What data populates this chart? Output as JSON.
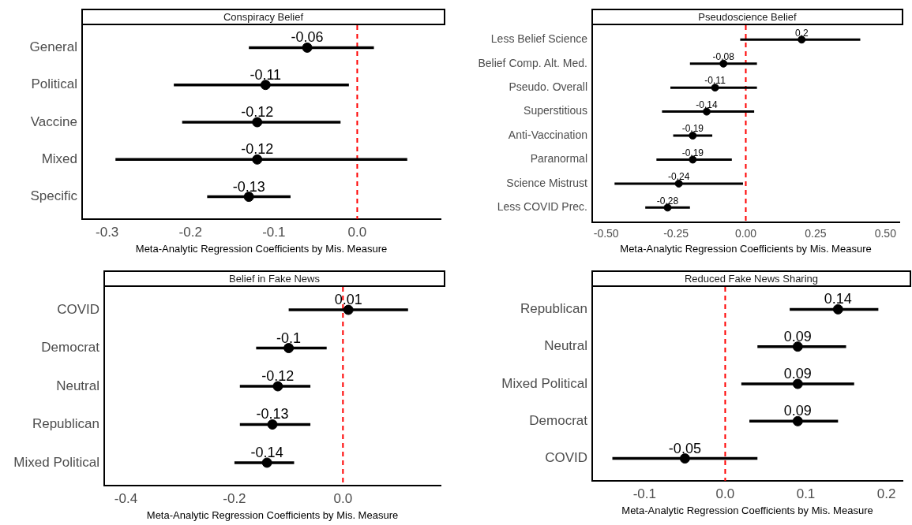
{
  "chart_data": [
    {
      "type": "scatter",
      "orientation": "horizontal",
      "title": "Conspiracy Belief",
      "xlabel": "Meta-Analytic Regression Coefficients by Mis. Measure",
      "categories": [
        "General",
        "Political",
        "Vaccine",
        "Mixed",
        "Specific"
      ],
      "series": [
        {
          "color": "#000000",
          "values": [
            -0.06,
            -0.11,
            -0.12,
            -0.12,
            -0.13
          ],
          "errors": [
            [
              -0.13,
              0.02
            ],
            [
              -0.22,
              -0.01
            ],
            [
              -0.21,
              -0.02
            ],
            [
              -0.29,
              0.06
            ],
            [
              -0.18,
              -0.08
            ]
          ]
        }
      ],
      "xlim": [
        -0.33,
        0.1
      ],
      "xticks": [
        -0.3,
        -0.2,
        -0.1,
        {
          "value": 0,
          "label": "0.0"
        }
      ],
      "ref_lines": [
        {
          "axis": "x",
          "value": 0,
          "color": "#ff0000",
          "line_style": "dashed"
        }
      ],
      "data_labels": true,
      "marker": "circle",
      "grid": false,
      "legend": false
    },
    {
      "type": "scatter",
      "orientation": "horizontal",
      "title": "Pseudoscience Belief",
      "xlabel": "Meta-Analytic Regression Coefficients by Mis. Measure",
      "categories": [
        "Less Belief Science",
        "Belief Comp. Alt. Med.",
        "Pseudo. Overall",
        "Superstitious",
        "Anti-Vaccination",
        "Paranormal",
        "Science Mistrust",
        "Less COVID Prec."
      ],
      "series": [
        {
          "color": "#000000",
          "values": [
            0.2,
            -0.08,
            -0.11,
            -0.14,
            -0.19,
            -0.19,
            -0.24,
            -0.28
          ],
          "errors": [
            [
              -0.02,
              0.41
            ],
            [
              -0.2,
              0.04
            ],
            [
              -0.27,
              0.04
            ],
            [
              -0.3,
              0.03
            ],
            [
              -0.26,
              -0.12
            ],
            [
              -0.32,
              -0.05
            ],
            [
              -0.47,
              -0.01
            ],
            [
              -0.36,
              -0.2
            ]
          ]
        }
      ],
      "xlim": [
        -0.55,
        0.55
      ],
      "xticks": [
        {
          "value": -0.5,
          "label": "-0.50"
        },
        {
          "value": -0.25,
          "label": "-0.25"
        },
        {
          "value": 0,
          "label": "0.00"
        },
        {
          "value": 0.25,
          "label": "0.25"
        },
        {
          "value": 0.5,
          "label": "0.50"
        }
      ],
      "ref_lines": [
        {
          "axis": "x",
          "value": 0,
          "color": "#ff0000",
          "line_style": "dashed"
        }
      ],
      "data_labels": true,
      "marker": "circle",
      "grid": false,
      "legend": false
    },
    {
      "type": "scatter",
      "orientation": "horizontal",
      "title": "Belief in Fake News",
      "xlabel": "Meta-Analytic Regression Coefficients by Mis. Measure",
      "categories": [
        "COVID",
        "Democrat",
        "Neutral",
        "Republican",
        "Mixed Political"
      ],
      "series": [
        {
          "color": "#000000",
          "values": [
            0.01,
            -0.1,
            -0.12,
            -0.13,
            -0.14
          ],
          "errors": [
            [
              -0.1,
              0.12
            ],
            [
              -0.16,
              -0.03
            ],
            [
              -0.19,
              -0.06
            ],
            [
              -0.19,
              -0.06
            ],
            [
              -0.2,
              -0.09
            ]
          ]
        }
      ],
      "xlim": [
        -0.44,
        0.18
      ],
      "xticks": [
        -0.4,
        -0.2,
        {
          "value": 0,
          "label": "0.0"
        }
      ],
      "ref_lines": [
        {
          "axis": "x",
          "value": 0,
          "color": "#ff0000",
          "line_style": "dashed"
        }
      ],
      "data_labels": true,
      "marker": "circle",
      "grid": false,
      "legend": false
    },
    {
      "type": "scatter",
      "orientation": "horizontal",
      "title": "Reduced Fake News Sharing",
      "xlabel": "Meta-Analytic Regression Coefficients by Mis. Measure",
      "categories": [
        "Republican",
        "Neutral",
        "Mixed Political",
        "Democrat",
        "COVID"
      ],
      "series": [
        {
          "color": "#000000",
          "values": [
            0.14,
            0.09,
            0.09,
            0.09,
            -0.05
          ],
          "errors": [
            [
              0.08,
              0.19
            ],
            [
              0.04,
              0.15
            ],
            [
              0.02,
              0.16
            ],
            [
              0.03,
              0.14
            ],
            [
              -0.14,
              0.04
            ]
          ]
        }
      ],
      "xlim": [
        -0.165,
        0.22
      ],
      "xticks": [
        -0.1,
        {
          "value": 0,
          "label": "0.0"
        },
        0.1,
        0.2
      ],
      "ref_lines": [
        {
          "axis": "x",
          "value": 0,
          "color": "#ff0000",
          "line_style": "dashed"
        }
      ],
      "data_labels": true,
      "marker": "circle",
      "grid": false,
      "legend": false
    }
  ]
}
